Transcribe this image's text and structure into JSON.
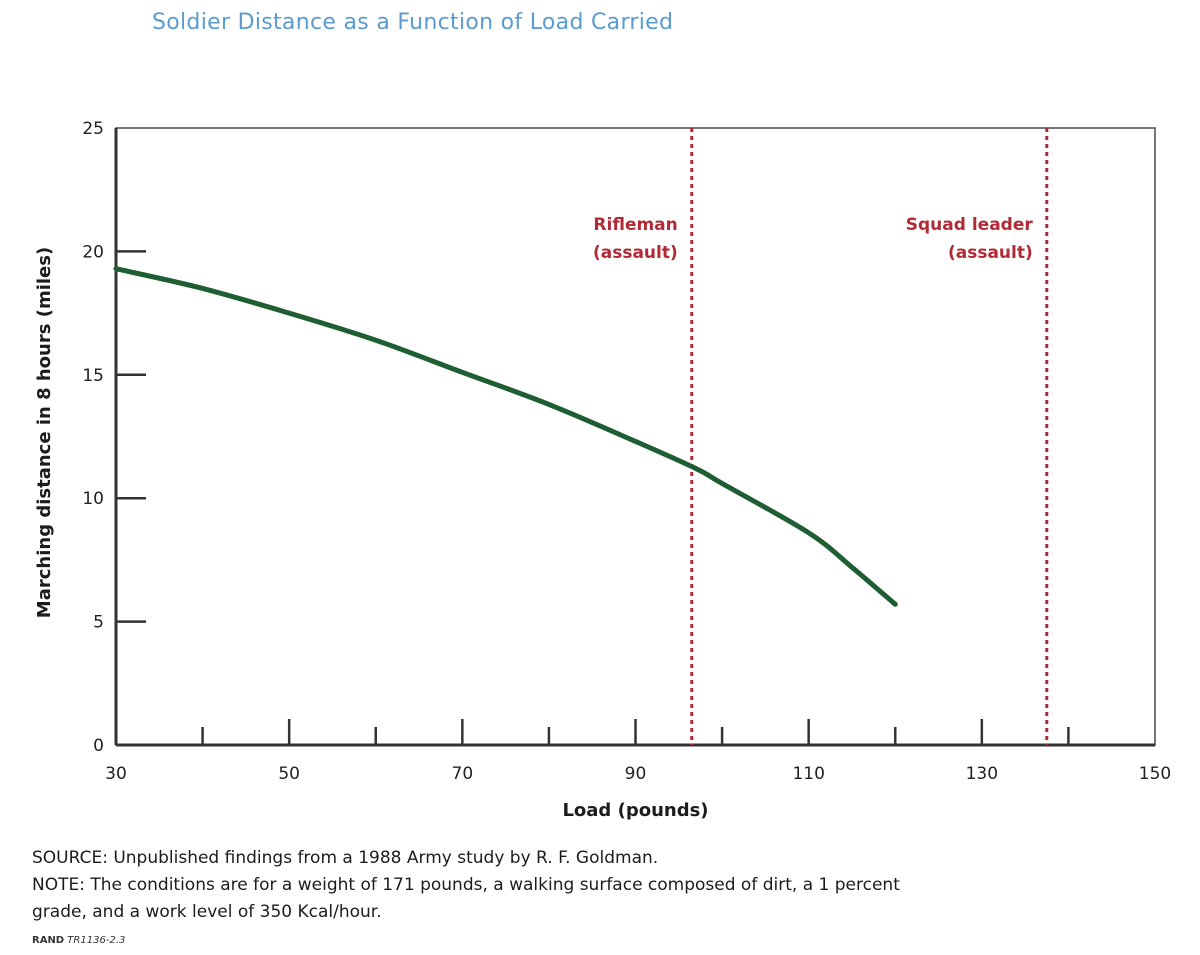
{
  "title": "Soldier Distance as a Function of Load Carried",
  "chart_data": {
    "type": "line",
    "xlabel": "Load (pounds)",
    "ylabel": "Marching distance in 8 hours (miles)",
    "xlim": [
      30,
      150
    ],
    "ylim": [
      0,
      25
    ],
    "x_ticks": [
      30,
      50,
      70,
      90,
      110,
      130,
      150
    ],
    "y_ticks": [
      0,
      5,
      10,
      15,
      20,
      25
    ],
    "grid": false,
    "series": [
      {
        "color": "#1f5e32",
        "x": [
          30,
          40,
          50,
          60,
          70,
          80,
          90,
          97,
          100,
          110,
          115,
          120
        ],
        "y": [
          19.3,
          18.5,
          17.5,
          16.4,
          15.1,
          13.8,
          12.3,
          11.2,
          10.6,
          8.6,
          7.2,
          5.7
        ]
      }
    ],
    "reference_lines": [
      {
        "x": 96.5,
        "label_line1": "Rifleman",
        "label_line2": "(assault)",
        "color": "#b22a35"
      },
      {
        "x": 137.5,
        "label_line1": "Squad leader",
        "label_line2": "(assault)",
        "color": "#b22a35"
      }
    ]
  },
  "source": "SOURCE: Unpublished findings from a 1988 Army study by R. F. Goldman.",
  "note_line1": "NOTE: The conditions are for a weight of 171 pounds, a walking surface composed of dirt, a 1 percent",
  "note_line2": "grade, and a work level of 350 Kcal/hour.",
  "credit_org": "RAND",
  "credit_id": "TR1136-2.3",
  "colors": {
    "title": "#5b9bd0",
    "curve": "#1f5e32",
    "reference": "#b22a35"
  }
}
